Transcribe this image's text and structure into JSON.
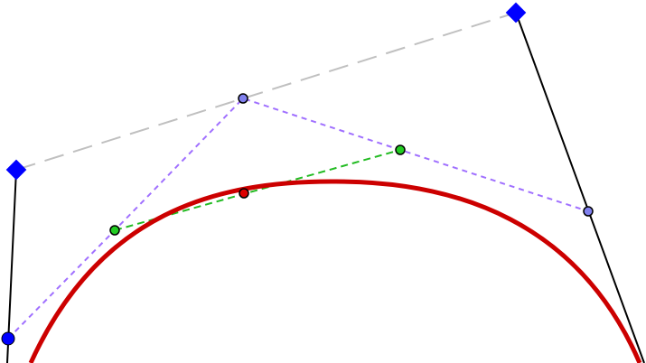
{
  "diagram": {
    "subject": "de-casteljau-bezier-construction",
    "colors": {
      "background": "#ffffff",
      "control_polygon": "#c0c0c0",
      "handle_lines": "#000000",
      "control_points": "#0000ff",
      "level1_lines": "#a070ff",
      "level1_points": "#8080ee",
      "level2_lines": "#22bb22",
      "level2_points": "#22cc22",
      "curve": "#cc0000",
      "curve_point": "#dd0000"
    }
  }
}
